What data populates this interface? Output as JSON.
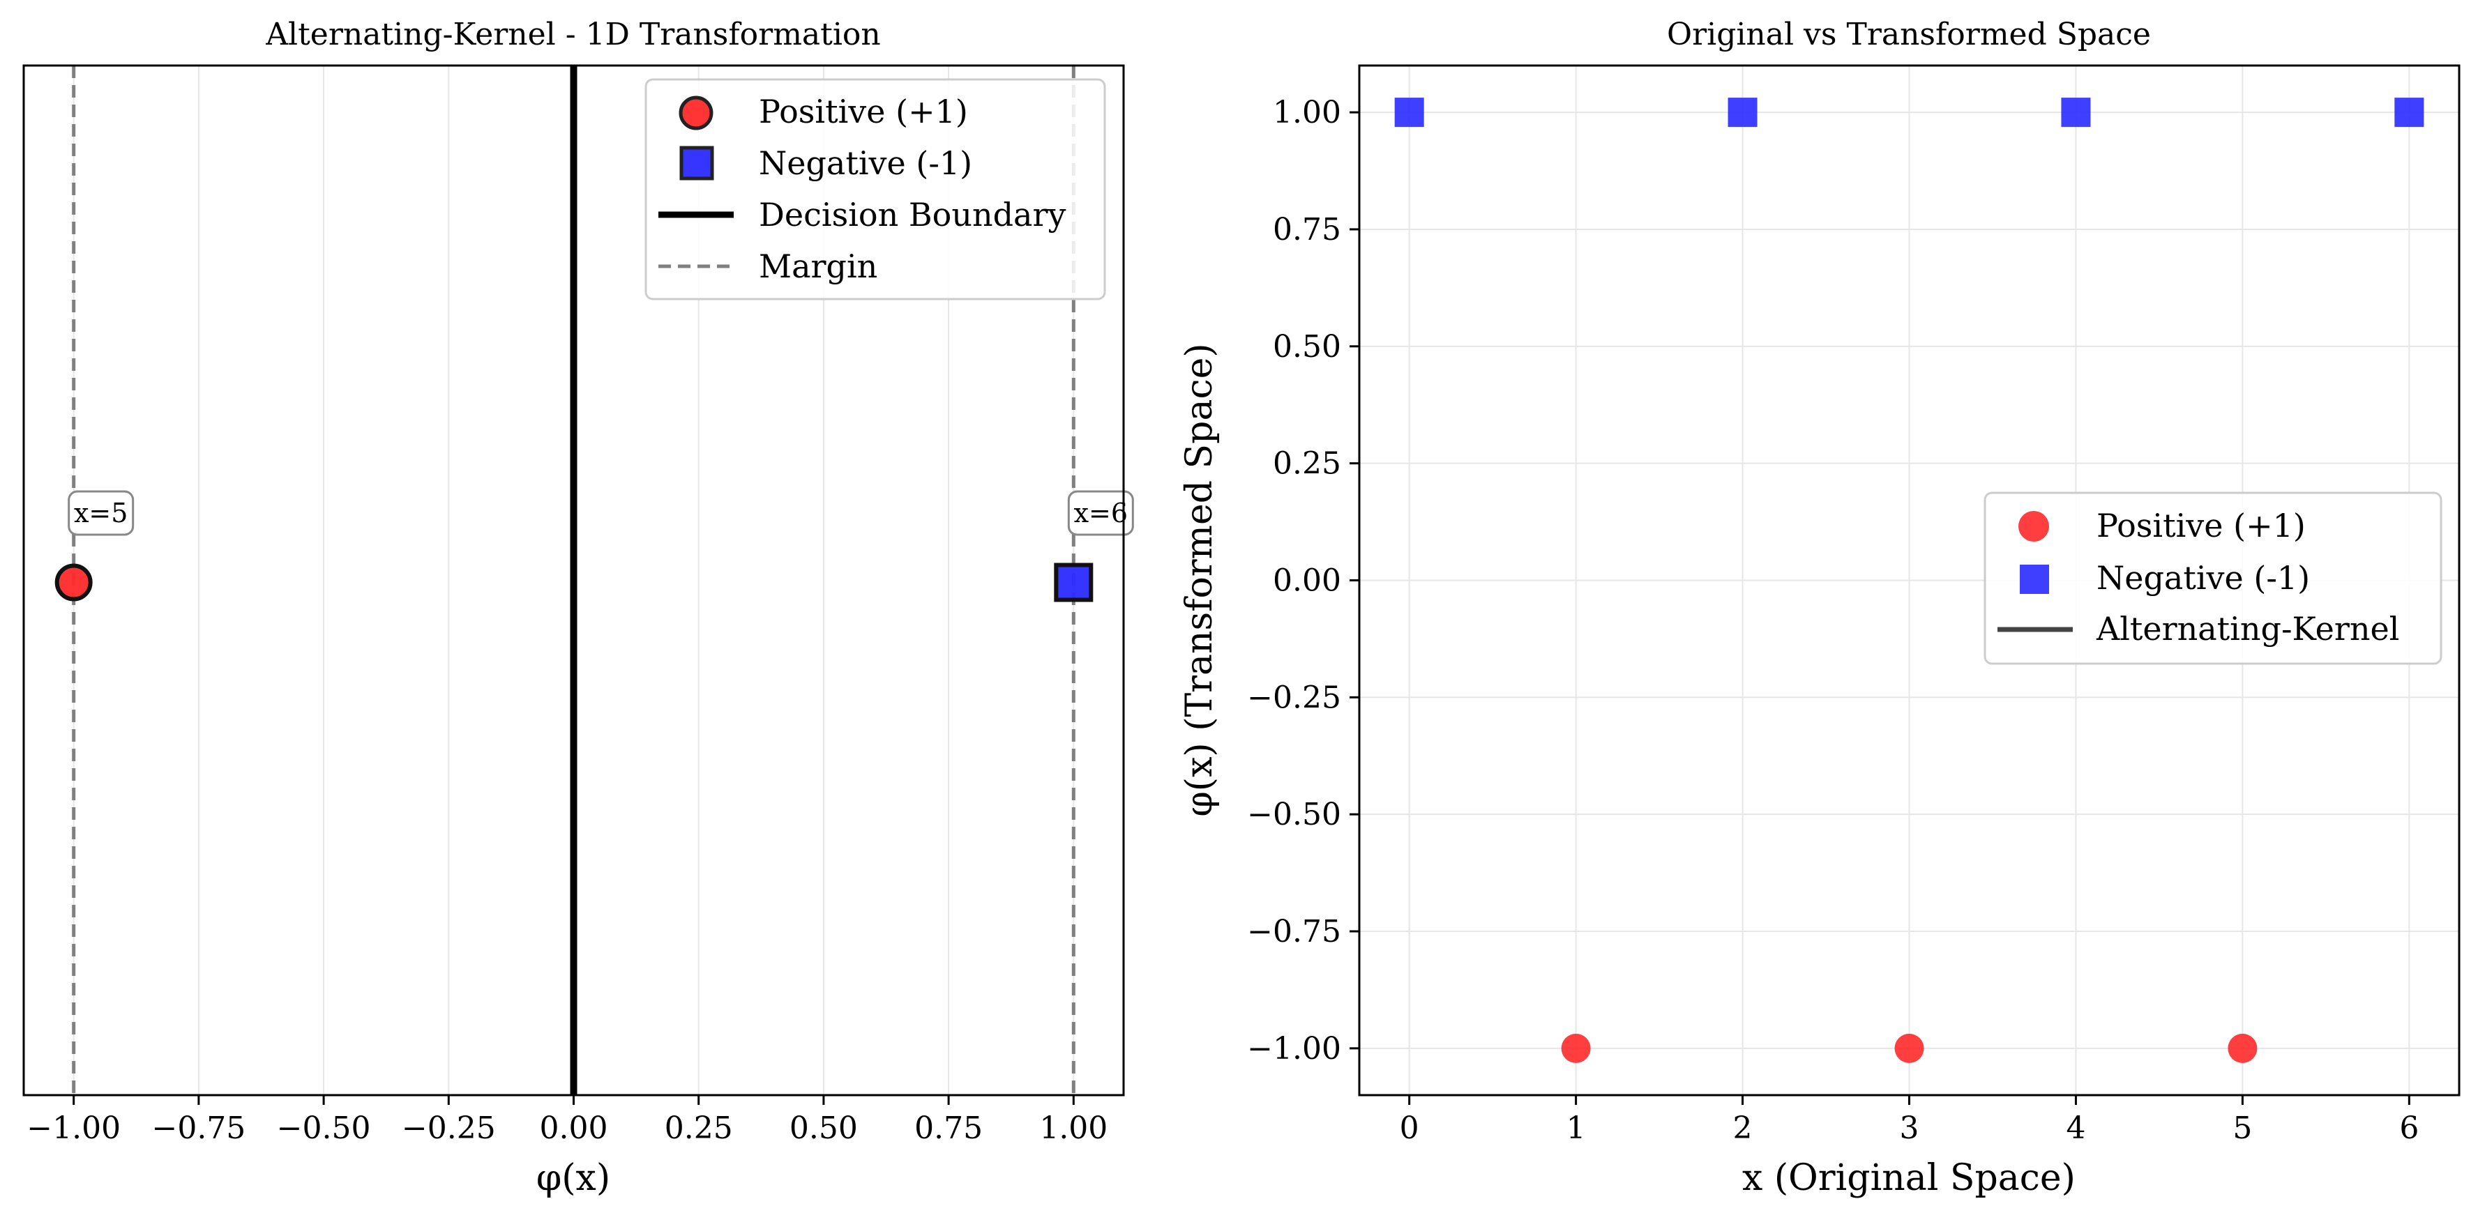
{
  "colors": {
    "positive": "#ff2a2a",
    "negative": "#2a2aff",
    "boundary": "#000000",
    "margin": "#808080",
    "kernel_line": "#444444",
    "grid": "#e6e6e6"
  },
  "chart_data": [
    {
      "type": "scatter",
      "title": "Alternating-Kernel - 1D Transformation",
      "xlabel": "φ(x)",
      "ylabel": "",
      "xlim": [
        -1.1,
        1.1
      ],
      "ylim": [
        -1,
        1
      ],
      "xticks": [
        -1.0,
        -0.75,
        -0.5,
        -0.25,
        0.0,
        0.25,
        0.5,
        0.75,
        1.0
      ],
      "xtick_labels": [
        "−1.00",
        "−0.75",
        "−0.50",
        "−0.25",
        "0.00",
        "0.25",
        "0.50",
        "0.75",
        "1.00"
      ],
      "grid": "x-only",
      "legend_position": "upper-right",
      "series": [
        {
          "name": "Positive (+1)",
          "marker": "circle",
          "color": "#ff2a2a",
          "points": [
            {
              "x": -1.0,
              "y": 0
            }
          ]
        },
        {
          "name": "Negative (-1)",
          "marker": "square",
          "color": "#2a2aff",
          "points": [
            {
              "x": 1.0,
              "y": 0
            }
          ]
        }
      ],
      "lines": [
        {
          "name": "Decision Boundary",
          "style": "solid",
          "color": "#000000",
          "x": 0.0
        },
        {
          "name": "Margin",
          "style": "dashed",
          "color": "#808080",
          "x": [
            -1.0,
            1.0
          ]
        }
      ],
      "annotations": [
        {
          "text": "x=5",
          "x": -1.0
        },
        {
          "text": "x=6",
          "x": 1.0
        }
      ]
    },
    {
      "type": "scatter",
      "title": "Original vs Transformed Space",
      "xlabel": "x (Original Space)",
      "ylabel": "φ(x) (Transformed Space)",
      "xlim": [
        -0.3,
        6.3
      ],
      "ylim": [
        -1.1,
        1.1
      ],
      "xticks": [
        0,
        1,
        2,
        3,
        4,
        5,
        6
      ],
      "xtick_labels": [
        "0",
        "1",
        "2",
        "3",
        "4",
        "5",
        "6"
      ],
      "yticks": [
        1.0,
        0.75,
        0.5,
        0.25,
        0.0,
        -0.25,
        -0.5,
        -0.75,
        -1.0
      ],
      "ytick_labels": [
        "1.00",
        "0.75",
        "0.50",
        "0.25",
        "0.00",
        "−0.25",
        "−0.50",
        "−0.75",
        "−1.00"
      ],
      "grid": "both",
      "legend_position": "center-right",
      "series": [
        {
          "name": "Positive (+1)",
          "marker": "circle",
          "color": "#ff2a2a",
          "x": [
            1,
            3,
            5
          ],
          "y": [
            -1,
            -1,
            -1
          ]
        },
        {
          "name": "Negative (-1)",
          "marker": "square",
          "color": "#2a2aff",
          "x": [
            0,
            2,
            4,
            6
          ],
          "y": [
            1,
            1,
            1,
            1
          ]
        }
      ],
      "legend_entries": [
        "Positive (+1)",
        "Negative (-1)",
        "Alternating-Kernel"
      ]
    }
  ]
}
